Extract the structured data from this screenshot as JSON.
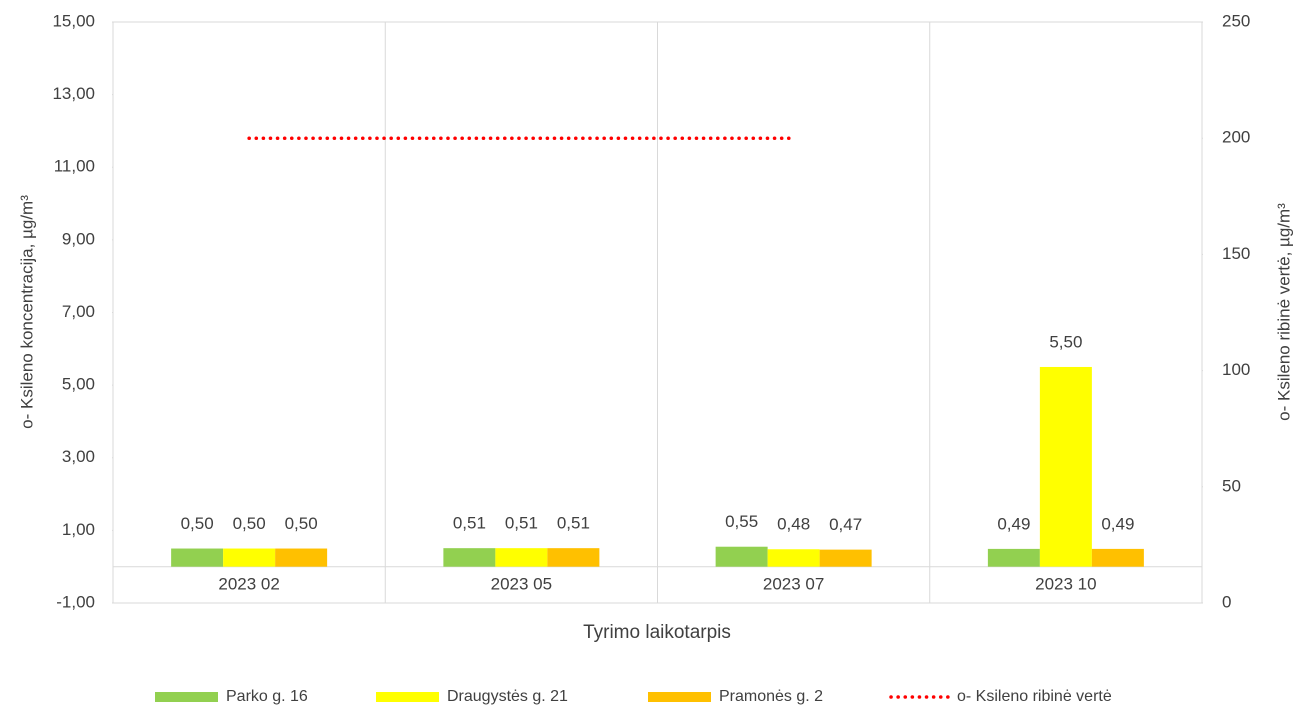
{
  "chart_data": {
    "type": "bar",
    "categories": [
      "2023 02",
      "2023 05",
      "2023 07",
      "2023 10"
    ],
    "series": [
      {
        "name": "Parko g. 16",
        "color": "#92d050",
        "values": [
          0.5,
          0.51,
          0.55,
          0.49
        ],
        "value_labels": [
          "0,50",
          "0,51",
          "0,55",
          "0,49"
        ]
      },
      {
        "name": "Draugystės g. 21",
        "color": "#ffff00",
        "values": [
          0.5,
          0.51,
          0.48,
          5.5
        ],
        "value_labels": [
          "0,50",
          "0,51",
          "0,48",
          "5,50"
        ]
      },
      {
        "name": "Pramonės g. 2",
        "color": "#ffc000",
        "values": [
          0.5,
          0.51,
          0.47,
          0.49
        ],
        "value_labels": [
          "0,50",
          "0,51",
          "0,47",
          "0,49"
        ]
      },
      {
        "name": "o- Ksileno ribinė vertė",
        "color": "#ff0000",
        "type": "line",
        "axis": "y2",
        "values": [
          200,
          200,
          200,
          null
        ]
      }
    ],
    "ylabel": "o- Ksileno koncentracija, µg/m³",
    "y2label": "o- Ksileno ribinė vertė, µg/m³",
    "xlabel": "Tyrimo laikotarpis",
    "ylim": [
      -1,
      15
    ],
    "yticks": [
      {
        "value": -1,
        "label": "-1,00"
      },
      {
        "value": 1,
        "label": "1,00"
      },
      {
        "value": 3,
        "label": "3,00"
      },
      {
        "value": 5,
        "label": "5,00"
      },
      {
        "value": 7,
        "label": "7,00"
      },
      {
        "value": 9,
        "label": "9,00"
      },
      {
        "value": 11,
        "label": "11,00"
      },
      {
        "value": 13,
        "label": "13,00"
      },
      {
        "value": 15,
        "label": "15,00"
      }
    ],
    "y2lim": [
      0,
      250
    ],
    "y2ticks": [
      0,
      50,
      100,
      150,
      200,
      250
    ],
    "legend": "bottom"
  }
}
